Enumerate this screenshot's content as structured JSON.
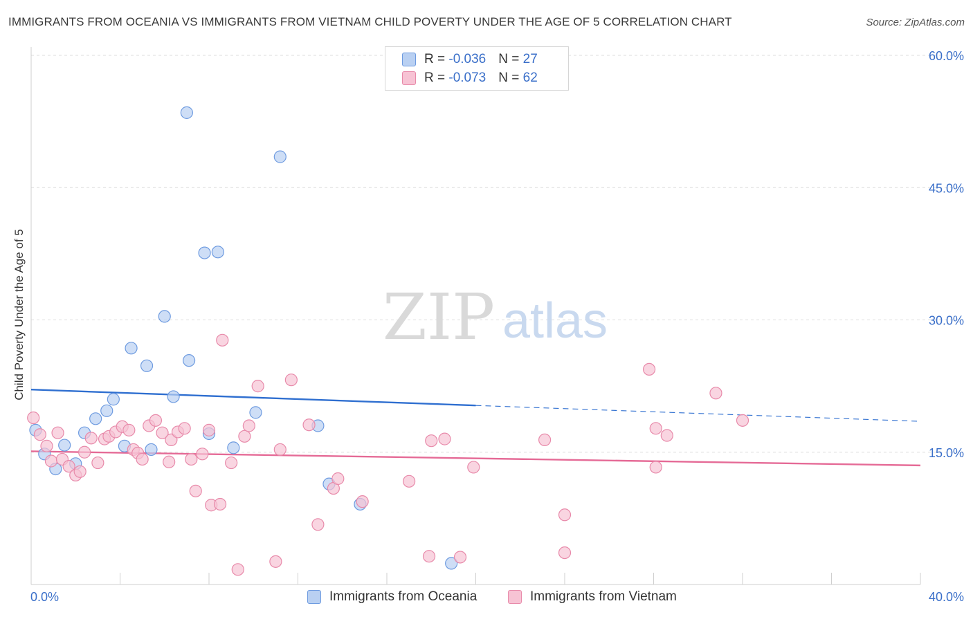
{
  "title": "IMMIGRANTS FROM OCEANIA VS IMMIGRANTS FROM VIETNAM CHILD POVERTY UNDER THE AGE OF 5 CORRELATION CHART",
  "source": "Source: ZipAtlas.com",
  "watermark": {
    "zip": "ZIP",
    "atlas": "atlas"
  },
  "colors": {
    "blue_fill": "#b9d0f2",
    "blue_stroke": "#6e9be0",
    "blue_line": "#2f6fd0",
    "pink_fill": "#f7c3d4",
    "pink_stroke": "#e88aaa",
    "pink_line": "#e56a96",
    "axis_label": "#3a6fc9",
    "grid": "#dcdcdc"
  },
  "legend": {
    "r_label": "R = ",
    "n_label": "N = ",
    "series": [
      {
        "r": "-0.036",
        "n": "27"
      },
      {
        "r": "-0.073",
        "n": "62"
      }
    ]
  },
  "chart_data": {
    "type": "scatter",
    "title": "IMMIGRANTS FROM OCEANIA VS IMMIGRANTS FROM VIETNAM CHILD POVERTY UNDER THE AGE OF 5 CORRELATION CHART",
    "xlabel": "",
    "ylabel": "Child Poverty Under the Age of 5",
    "xlim": [
      0,
      40
    ],
    "ylim": [
      0,
      60
    ],
    "x_tick_labels": [
      "0.0%",
      "40.0%"
    ],
    "y_ticks": [
      15,
      30,
      45,
      60
    ],
    "y_tick_labels": [
      "15.0%",
      "30.0%",
      "45.0%",
      "60.0%"
    ],
    "grid": true,
    "legend_position": "top-center",
    "series": [
      {
        "name": "Immigrants from Oceania",
        "color": "blue",
        "points": [
          [
            0.2,
            17.5
          ],
          [
            0.6,
            14.8
          ],
          [
            1.1,
            13.1
          ],
          [
            1.5,
            15.8
          ],
          [
            2.0,
            13.7
          ],
          [
            2.4,
            17.2
          ],
          [
            2.9,
            18.8
          ],
          [
            3.4,
            19.7
          ],
          [
            3.7,
            21.0
          ],
          [
            4.2,
            15.7
          ],
          [
            4.5,
            26.8
          ],
          [
            5.2,
            24.8
          ],
          [
            5.4,
            15.3
          ],
          [
            6.0,
            30.4
          ],
          [
            6.4,
            21.3
          ],
          [
            7.0,
            53.5
          ],
          [
            7.1,
            25.4
          ],
          [
            7.8,
            37.6
          ],
          [
            8.0,
            17.1
          ],
          [
            8.4,
            37.7
          ],
          [
            9.1,
            15.5
          ],
          [
            10.1,
            19.5
          ],
          [
            11.2,
            48.5
          ],
          [
            12.9,
            18.0
          ],
          [
            13.4,
            11.4
          ],
          [
            14.8,
            9.1
          ],
          [
            18.9,
            2.4
          ]
        ],
        "trend": {
          "x": [
            0,
            20,
            40
          ],
          "y": [
            22.1,
            20.3,
            18.5
          ],
          "solid_until": 20
        }
      },
      {
        "name": "Immigrants from Vietnam",
        "color": "pink",
        "points": [
          [
            0.1,
            18.9
          ],
          [
            0.4,
            17.0
          ],
          [
            0.7,
            15.7
          ],
          [
            0.9,
            14.0
          ],
          [
            1.2,
            17.2
          ],
          [
            1.4,
            14.2
          ],
          [
            1.7,
            13.4
          ],
          [
            2.0,
            12.4
          ],
          [
            2.2,
            12.8
          ],
          [
            2.4,
            15.0
          ],
          [
            2.7,
            16.6
          ],
          [
            3.0,
            13.8
          ],
          [
            3.3,
            16.5
          ],
          [
            3.5,
            16.8
          ],
          [
            3.8,
            17.3
          ],
          [
            4.1,
            17.9
          ],
          [
            4.4,
            17.5
          ],
          [
            4.6,
            15.3
          ],
          [
            4.8,
            14.9
          ],
          [
            5.0,
            14.2
          ],
          [
            5.3,
            18.0
          ],
          [
            5.6,
            18.6
          ],
          [
            5.9,
            17.2
          ],
          [
            6.2,
            13.9
          ],
          [
            6.3,
            16.4
          ],
          [
            6.6,
            17.3
          ],
          [
            6.9,
            17.7
          ],
          [
            7.2,
            14.2
          ],
          [
            7.4,
            10.6
          ],
          [
            7.7,
            14.8
          ],
          [
            8.0,
            17.5
          ],
          [
            8.1,
            9.0
          ],
          [
            8.5,
            9.1
          ],
          [
            8.6,
            27.7
          ],
          [
            9.0,
            13.8
          ],
          [
            9.3,
            1.7
          ],
          [
            9.6,
            16.8
          ],
          [
            9.8,
            18.0
          ],
          [
            10.2,
            22.5
          ],
          [
            11.0,
            2.6
          ],
          [
            11.2,
            15.3
          ],
          [
            11.7,
            23.2
          ],
          [
            12.5,
            18.1
          ],
          [
            12.9,
            6.8
          ],
          [
            13.6,
            10.9
          ],
          [
            13.8,
            12.0
          ],
          [
            14.9,
            9.4
          ],
          [
            17.0,
            11.7
          ],
          [
            17.9,
            3.2
          ],
          [
            18.0,
            16.3
          ],
          [
            18.6,
            16.5
          ],
          [
            19.3,
            3.1
          ],
          [
            19.9,
            13.3
          ],
          [
            23.1,
            16.4
          ],
          [
            24.0,
            7.9
          ],
          [
            24.0,
            3.6
          ],
          [
            27.8,
            24.4
          ],
          [
            28.1,
            17.7
          ],
          [
            28.1,
            13.3
          ],
          [
            28.6,
            16.9
          ],
          [
            30.8,
            21.7
          ],
          [
            32.0,
            18.6
          ]
        ],
        "trend": {
          "x": [
            0,
            40
          ],
          "y": [
            15.1,
            13.5
          ],
          "solid_until": 40
        }
      }
    ]
  }
}
